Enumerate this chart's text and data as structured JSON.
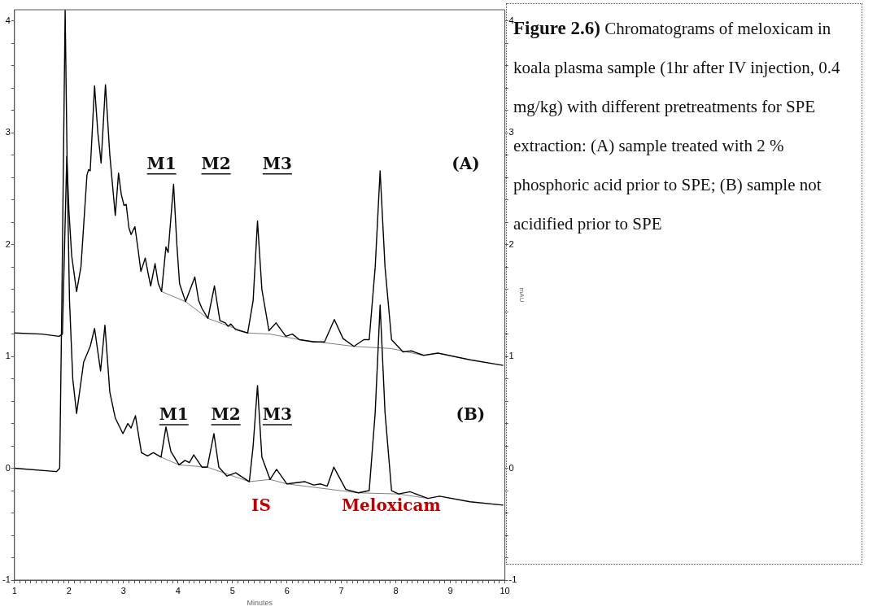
{
  "chart_data": {
    "type": "line",
    "title": "Figure 2.6)",
    "xlabel": "Minutes",
    "y2label": "mAU",
    "xlim": [
      1,
      10
    ],
    "xticks": [
      1,
      {
        "value": 1.1,
        "label": null
      },
      {
        "value": 1.2,
        "label": null
      },
      {
        "value": 1.3,
        "label": null
      },
      {
        "value": 1.4,
        "label": null
      },
      {
        "value": 1.5,
        "label": null
      },
      {
        "value": 1.6,
        "label": null
      },
      {
        "value": 1.7,
        "label": null
      },
      {
        "value": 1.8,
        "label": null
      },
      {
        "value": 1.9,
        "label": null
      },
      2,
      {
        "value": 2.1,
        "label": null
      },
      {
        "value": 2.2,
        "label": null
      },
      {
        "value": 2.3,
        "label": null
      },
      {
        "value": 2.4,
        "label": null
      },
      {
        "value": 2.5,
        "label": null
      },
      {
        "value": 2.6,
        "label": null
      },
      {
        "value": 2.7,
        "label": null
      },
      {
        "value": 2.8,
        "label": null
      },
      {
        "value": 2.9,
        "label": null
      },
      3,
      {
        "value": 3.1,
        "label": null
      },
      {
        "value": 3.2,
        "label": null
      },
      {
        "value": 3.3,
        "label": null
      },
      {
        "value": 3.4,
        "label": null
      },
      {
        "value": 3.5,
        "label": null
      },
      {
        "value": 3.6,
        "label": null
      },
      {
        "value": 3.7,
        "label": null
      },
      {
        "value": 3.8,
        "label": null
      },
      {
        "value": 3.9,
        "label": null
      },
      4,
      {
        "value": 4.1,
        "label": null
      },
      {
        "value": 4.2,
        "label": null
      },
      {
        "value": 4.3,
        "label": null
      },
      {
        "value": 4.4,
        "label": null
      },
      {
        "value": 4.5,
        "label": null
      },
      {
        "value": 4.6,
        "label": null
      },
      {
        "value": 4.7,
        "label": null
      },
      {
        "value": 4.8,
        "label": null
      },
      {
        "value": 4.9,
        "label": null
      },
      5,
      {
        "value": 5.1,
        "label": null
      },
      {
        "value": 5.2,
        "label": null
      },
      {
        "value": 5.3,
        "label": null
      },
      {
        "value": 5.4,
        "label": null
      },
      {
        "value": 5.5,
        "label": null
      },
      {
        "value": 5.6,
        "label": null
      },
      {
        "value": 5.7,
        "label": null
      },
      {
        "value": 5.8,
        "label": null
      },
      {
        "value": 5.9,
        "label": null
      },
      6,
      {
        "value": 6.1,
        "label": null
      },
      {
        "value": 6.2,
        "label": null
      },
      {
        "value": 6.3,
        "label": null
      },
      {
        "value": 6.4,
        "label": null
      },
      {
        "value": 6.5,
        "label": null
      },
      {
        "value": 6.6,
        "label": null
      },
      {
        "value": 6.7,
        "label": null
      },
      {
        "value": 6.8,
        "label": null
      },
      {
        "value": 6.9,
        "label": null
      },
      7,
      {
        "value": 7.1,
        "label": null
      },
      {
        "value": 7.2,
        "label": null
      },
      {
        "value": 7.3,
        "label": null
      },
      {
        "value": 7.4,
        "label": null
      },
      {
        "value": 7.5,
        "label": null
      },
      {
        "value": 7.6,
        "label": null
      },
      {
        "value": 7.7,
        "label": null
      },
      {
        "value": 7.8,
        "label": null
      },
      {
        "value": 7.9,
        "label": null
      },
      8,
      {
        "value": 8.1,
        "label": null
      },
      {
        "value": 8.2,
        "label": null
      },
      {
        "value": 8.3,
        "label": null
      },
      {
        "value": 8.4,
        "label": null
      },
      {
        "value": 8.5,
        "label": null
      },
      {
        "value": 8.6,
        "label": null
      },
      {
        "value": 8.7,
        "label": null
      },
      {
        "value": 8.8,
        "label": null
      },
      {
        "value": 8.9,
        "label": null
      },
      9,
      {
        "value": 9.1,
        "label": null
      },
      {
        "value": 9.2,
        "label": null
      },
      {
        "value": 9.3,
        "label": null
      },
      {
        "value": 9.4,
        "label": null
      },
      {
        "value": 9.5,
        "label": null
      },
      {
        "value": 9.6,
        "label": null
      },
      {
        "value": 9.7,
        "label": null
      },
      {
        "value": 9.8,
        "label": null
      },
      {
        "value": 9.9,
        "label": null
      },
      10
    ],
    "ylim": [
      -1,
      4.1
    ],
    "yticks": [
      -1,
      {
        "value": -0.8,
        "label": null
      },
      {
        "value": -0.6,
        "label": null
      },
      {
        "value": -0.4,
        "label": null
      },
      {
        "value": -0.2,
        "label": null
      },
      0,
      {
        "value": 0.2,
        "label": null
      },
      {
        "value": 0.4,
        "label": null
      },
      {
        "value": 0.6,
        "label": null
      },
      {
        "value": 0.8,
        "label": null
      },
      1,
      {
        "value": 1.2,
        "label": null
      },
      {
        "value": 1.4,
        "label": null
      },
      {
        "value": 1.6,
        "label": null
      },
      {
        "value": 1.8,
        "label": null
      },
      2,
      {
        "value": 2.2,
        "label": null
      },
      {
        "value": 2.4,
        "label": null
      },
      {
        "value": 2.6,
        "label": null
      },
      {
        "value": 2.8,
        "label": null
      },
      3,
      {
        "value": 3.2,
        "label": null
      },
      {
        "value": 3.4,
        "label": null
      },
      {
        "value": 3.6,
        "label": null
      },
      {
        "value": 3.8,
        "label": null
      },
      4
    ],
    "y2lim": [
      -1,
      4.1
    ],
    "y2ticks": [
      -1,
      {
        "value": -0.8,
        "label": null
      },
      {
        "value": -0.6,
        "label": null
      },
      {
        "value": -0.4,
        "label": null
      },
      {
        "value": -0.2,
        "label": null
      },
      0,
      {
        "value": 0.2,
        "label": null
      },
      {
        "value": 0.4,
        "label": null
      },
      {
        "value": 0.6,
        "label": null
      },
      {
        "value": 0.8,
        "label": null
      },
      1,
      {
        "value": 1.2,
        "label": null
      },
      {
        "value": 1.4,
        "label": null
      },
      {
        "value": 1.6,
        "label": null
      },
      {
        "value": 1.8,
        "label": null
      },
      2,
      {
        "value": 2.2,
        "label": null
      },
      {
        "value": 2.4,
        "label": null
      },
      {
        "value": 2.6,
        "label": null
      },
      {
        "value": 2.8,
        "label": null
      },
      3,
      {
        "value": 3.2,
        "label": null
      },
      {
        "value": 3.4,
        "label": null
      },
      {
        "value": 3.6,
        "label": null
      },
      {
        "value": 3.8,
        "label": null
      },
      4
    ],
    "grid": false,
    "legend": false,
    "marker": "none",
    "line_style": "solid",
    "series": [
      {
        "color": "#000000",
        "x": [
          1.0,
          1.5,
          1.82,
          1.88,
          1.91,
          1.96,
          2.0,
          2.05,
          2.14,
          2.22,
          2.33,
          2.36,
          2.39,
          2.47,
          2.53,
          2.59,
          2.67,
          2.75,
          2.85,
          2.91,
          2.96,
          3.01,
          3.05,
          3.1,
          3.14,
          3.21,
          3.27,
          3.32,
          3.4,
          3.45,
          3.5,
          3.58,
          3.64,
          3.7,
          3.78,
          3.82,
          3.92,
          3.98,
          4.03,
          4.14,
          4.31,
          4.38,
          4.44,
          4.55,
          4.67,
          4.77,
          4.87,
          4.92,
          4.97,
          5.06,
          5.28,
          5.38,
          5.46,
          5.54,
          5.67,
          5.8,
          5.98,
          6.1,
          6.23,
          6.49,
          6.69,
          6.87,
          7.03,
          7.23,
          7.41,
          7.51,
          7.62,
          7.71,
          7.8,
          7.92,
          8.13,
          8.28,
          8.51,
          8.77,
          9.36,
          9.97
        ],
        "values": [
          1.21,
          1.2,
          1.18,
          1.2,
          1.8,
          2.79,
          2.3,
          1.9,
          1.58,
          1.8,
          2.62,
          2.67,
          2.66,
          3.42,
          3.0,
          2.73,
          3.43,
          2.8,
          2.26,
          2.64,
          2.45,
          2.35,
          2.36,
          2.15,
          2.09,
          2.16,
          1.95,
          1.76,
          1.88,
          1.75,
          1.63,
          1.83,
          1.65,
          1.58,
          1.98,
          1.93,
          2.54,
          2.0,
          1.65,
          1.49,
          1.71,
          1.5,
          1.43,
          1.34,
          1.63,
          1.32,
          1.3,
          1.27,
          1.29,
          1.24,
          1.21,
          1.5,
          2.21,
          1.6,
          1.23,
          1.3,
          1.18,
          1.2,
          1.15,
          1.13,
          1.13,
          1.33,
          1.16,
          1.09,
          1.15,
          1.15,
          1.8,
          2.66,
          1.8,
          1.15,
          1.04,
          1.05,
          1.01,
          1.03,
          0.97,
          0.92
        ]
      },
      {
        "color": "#000000",
        "x": [
          1.0,
          1.77,
          1.83,
          1.87,
          1.93,
          1.97,
          2.01,
          2.07,
          2.14,
          2.2,
          2.27,
          2.39,
          2.47,
          2.58,
          2.66,
          2.75,
          2.85,
          2.99,
          3.08,
          3.14,
          3.22,
          3.33,
          3.44,
          3.55,
          3.69,
          3.78,
          3.87,
          4.02,
          4.13,
          4.21,
          4.29,
          4.44,
          4.54,
          4.66,
          4.75,
          4.9,
          5.06,
          5.31,
          5.38,
          5.46,
          5.54,
          5.69,
          5.81,
          6.0,
          6.33,
          6.49,
          6.62,
          6.74,
          6.86,
          7.08,
          7.31,
          7.51,
          7.62,
          7.71,
          7.8,
          7.92,
          8.05,
          8.26,
          8.59,
          8.8,
          9.36,
          9.97
        ],
        "values": [
          0.0,
          -0.03,
          0.0,
          1.5,
          4.1,
          2.6,
          1.5,
          0.8,
          0.49,
          0.7,
          0.95,
          1.09,
          1.25,
          0.87,
          1.28,
          0.68,
          0.45,
          0.31,
          0.4,
          0.36,
          0.47,
          0.14,
          0.11,
          0.14,
          0.1,
          0.37,
          0.15,
          0.03,
          0.07,
          0.05,
          0.12,
          0.01,
          0.01,
          0.31,
          0.01,
          -0.07,
          -0.04,
          -0.12,
          0.2,
          0.74,
          0.1,
          -0.1,
          -0.01,
          -0.14,
          -0.12,
          -0.15,
          -0.14,
          -0.16,
          0.01,
          -0.19,
          -0.22,
          -0.2,
          0.5,
          1.46,
          0.5,
          -0.2,
          -0.23,
          -0.21,
          -0.27,
          -0.25,
          -0.3,
          -0.33
        ]
      },
      {
        "color": "#808080",
        "x": [
          3.7,
          4.14,
          4.55,
          5.28,
          5.69,
          6.23,
          7.23,
          7.92,
          8.49
        ],
        "values": [
          1.58,
          1.49,
          1.34,
          1.21,
          1.2,
          1.15,
          1.09,
          1.07,
          1.01
        ]
      },
      {
        "color": "#808080",
        "x": [
          3.69,
          4.02,
          4.54,
          5.31,
          5.69,
          6.0,
          7.31,
          8.05,
          8.59
        ],
        "values": [
          0.1,
          0.03,
          0.01,
          -0.12,
          -0.1,
          -0.14,
          -0.22,
          -0.23,
          -0.27
        ]
      }
    ],
    "annotations": [
      "M1",
      "M2",
      "M3",
      "(A)",
      "M1",
      "M2",
      "M3",
      "(B)",
      "IS",
      "Meloxicam",
      "Chromatograms of meloxicam in koala plasma sample (1hr after IV injection, 0.4 mg/kg) with different pretreatments for SPE extraction: (A) sample treated with 2 % phosphoric acid prior to SPE; (B) sample not acidified prior to SPE"
    ]
  }
}
